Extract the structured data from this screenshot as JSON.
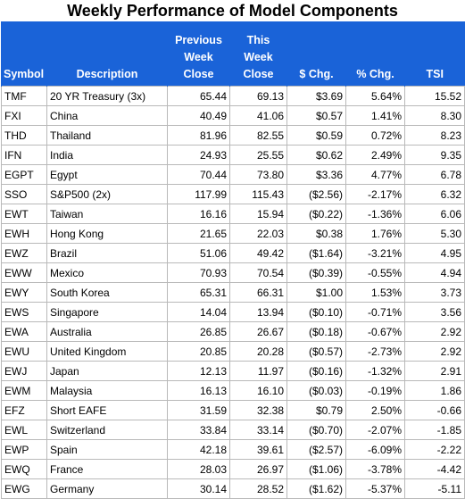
{
  "title": "Weekly Performance of Model Components",
  "colors": {
    "header_bg": "#1a63d8",
    "header_text": "#ffffff",
    "positive": "#008000",
    "negative": "#c00000",
    "grid": "#b9b9b9"
  },
  "headers": {
    "symbol": "Symbol",
    "description": "Description",
    "prev_line1": "Previous",
    "prev_line2": "Week",
    "prev_line3": "Close",
    "this_line1": "This",
    "this_line2": "Week",
    "this_line3": "Close",
    "dchg": "$ Chg.",
    "pchg": "% Chg.",
    "tsi": "TSI"
  },
  "rows": [
    {
      "symbol": "TMF",
      "description": "20 YR Treasury (3x)",
      "prev": "65.44",
      "this": "69.13",
      "dchg": "$3.69",
      "pchg": "5.64%",
      "tsi": "15.52"
    },
    {
      "symbol": "FXI",
      "description": "China",
      "prev": "40.49",
      "this": "41.06",
      "dchg": "$0.57",
      "pchg": "1.41%",
      "tsi": "8.30"
    },
    {
      "symbol": "THD",
      "description": "Thailand",
      "prev": "81.96",
      "this": "82.55",
      "dchg": "$0.59",
      "pchg": "0.72%",
      "tsi": "8.23"
    },
    {
      "symbol": "IFN",
      "description": "India",
      "prev": "24.93",
      "this": "25.55",
      "dchg": "$0.62",
      "pchg": "2.49%",
      "tsi": "9.35"
    },
    {
      "symbol": "EGPT",
      "description": "Egypt",
      "prev": "70.44",
      "this": "73.80",
      "dchg": "$3.36",
      "pchg": "4.77%",
      "tsi": "6.78"
    },
    {
      "symbol": "SSO",
      "description": "S&P500 (2x)",
      "prev": "117.99",
      "this": "115.43",
      "dchg": "($2.56)",
      "pchg": "-2.17%",
      "tsi": "6.32"
    },
    {
      "symbol": "EWT",
      "description": "Taiwan",
      "prev": "16.16",
      "this": "15.94",
      "dchg": "($0.22)",
      "pchg": "-1.36%",
      "tsi": "6.06"
    },
    {
      "symbol": "EWH",
      "description": "Hong Kong",
      "prev": "21.65",
      "this": "22.03",
      "dchg": "$0.38",
      "pchg": "1.76%",
      "tsi": "5.30"
    },
    {
      "symbol": "EWZ",
      "description": "Brazil",
      "prev": "51.06",
      "this": "49.42",
      "dchg": "($1.64)",
      "pchg": "-3.21%",
      "tsi": "4.95"
    },
    {
      "symbol": "EWW",
      "description": "Mexico",
      "prev": "70.93",
      "this": "70.54",
      "dchg": "($0.39)",
      "pchg": "-0.55%",
      "tsi": "4.94"
    },
    {
      "symbol": "EWY",
      "description": "South Korea",
      "prev": "65.31",
      "this": "66.31",
      "dchg": "$1.00",
      "pchg": "1.53%",
      "tsi": "3.73"
    },
    {
      "symbol": "EWS",
      "description": "Singapore",
      "prev": "14.04",
      "this": "13.94",
      "dchg": "($0.10)",
      "pchg": "-0.71%",
      "tsi": "3.56"
    },
    {
      "symbol": "EWA",
      "description": "Australia",
      "prev": "26.85",
      "this": "26.67",
      "dchg": "($0.18)",
      "pchg": "-0.67%",
      "tsi": "2.92"
    },
    {
      "symbol": "EWU",
      "description": "United Kingdom",
      "prev": "20.85",
      "this": "20.28",
      "dchg": "($0.57)",
      "pchg": "-2.73%",
      "tsi": "2.92"
    },
    {
      "symbol": "EWJ",
      "description": "Japan",
      "prev": "12.13",
      "this": "11.97",
      "dchg": "($0.16)",
      "pchg": "-1.32%",
      "tsi": "2.91"
    },
    {
      "symbol": "EWM",
      "description": "Malaysia",
      "prev": "16.13",
      "this": "16.10",
      "dchg": "($0.03)",
      "pchg": "-0.19%",
      "tsi": "1.86"
    },
    {
      "symbol": "EFZ",
      "description": "Short EAFE",
      "prev": "31.59",
      "this": "32.38",
      "dchg": "$0.79",
      "pchg": "2.50%",
      "tsi": "-0.66"
    },
    {
      "symbol": "EWL",
      "description": "Switzerland",
      "prev": "33.84",
      "this": "33.14",
      "dchg": "($0.70)",
      "pchg": "-2.07%",
      "tsi": "-1.85"
    },
    {
      "symbol": "EWP",
      "description": "Spain",
      "prev": "42.18",
      "this": "39.61",
      "dchg": "($2.57)",
      "pchg": "-6.09%",
      "tsi": "-2.22"
    },
    {
      "symbol": "EWQ",
      "description": "France",
      "prev": "28.03",
      "this": "26.97",
      "dchg": "($1.06)",
      "pchg": "-3.78%",
      "tsi": "-4.42"
    },
    {
      "symbol": "EWG",
      "description": "Germany",
      "prev": "30.14",
      "this": "28.52",
      "dchg": "($1.62)",
      "pchg": "-5.37%",
      "tsi": "-5.11"
    }
  ]
}
